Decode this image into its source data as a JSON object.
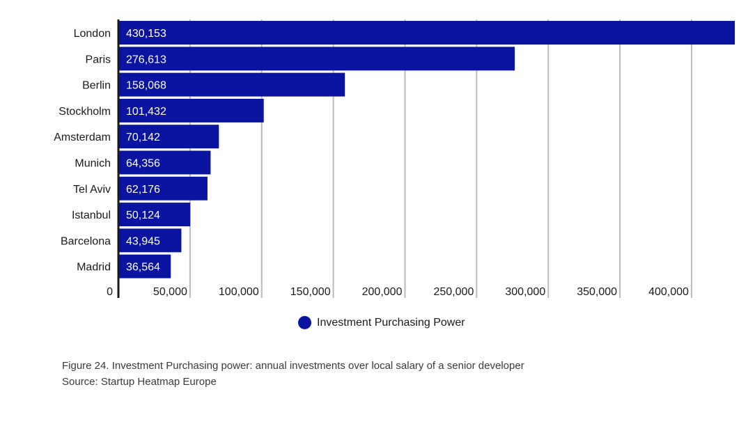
{
  "chart_data": {
    "type": "bar",
    "orientation": "horizontal",
    "categories": [
      "London",
      "Paris",
      "Berlin",
      "Stockholm",
      "Amsterdam",
      "Munich",
      "Tel Aviv",
      "Istanbul",
      "Barcelona",
      "Madrid"
    ],
    "series": [
      {
        "name": "Investment Purchasing Power",
        "values": [
          430153,
          276613,
          158068,
          101432,
          70142,
          64356,
          62176,
          50124,
          43945,
          36564
        ],
        "value_labels": [
          "430,153",
          "276,613",
          "158,068",
          "101,432",
          "70,142",
          "64,356",
          "62,176",
          "50,124",
          "43,945",
          "36,564"
        ]
      }
    ],
    "x_ticks": [
      "0",
      "50,000",
      "100,000",
      "150,000",
      "200,000",
      "250,000",
      "300,000",
      "350,000",
      "400,000"
    ],
    "x_tick_values": [
      0,
      50000,
      100000,
      150000,
      200000,
      250000,
      300000,
      350000,
      400000
    ],
    "xlim": [
      0,
      430153
    ],
    "grid": true,
    "legend_position": "bottom-center",
    "bar_color": "#0a14a0",
    "grid_color": "#bbbbbb"
  },
  "legend": {
    "label": "Investment Purchasing Power"
  },
  "caption": {
    "line1": "Figure 24. Investment Purchasing power: annual investments over local salary of a senior developer",
    "line2": "Source: Startup Heatmap Europe"
  }
}
